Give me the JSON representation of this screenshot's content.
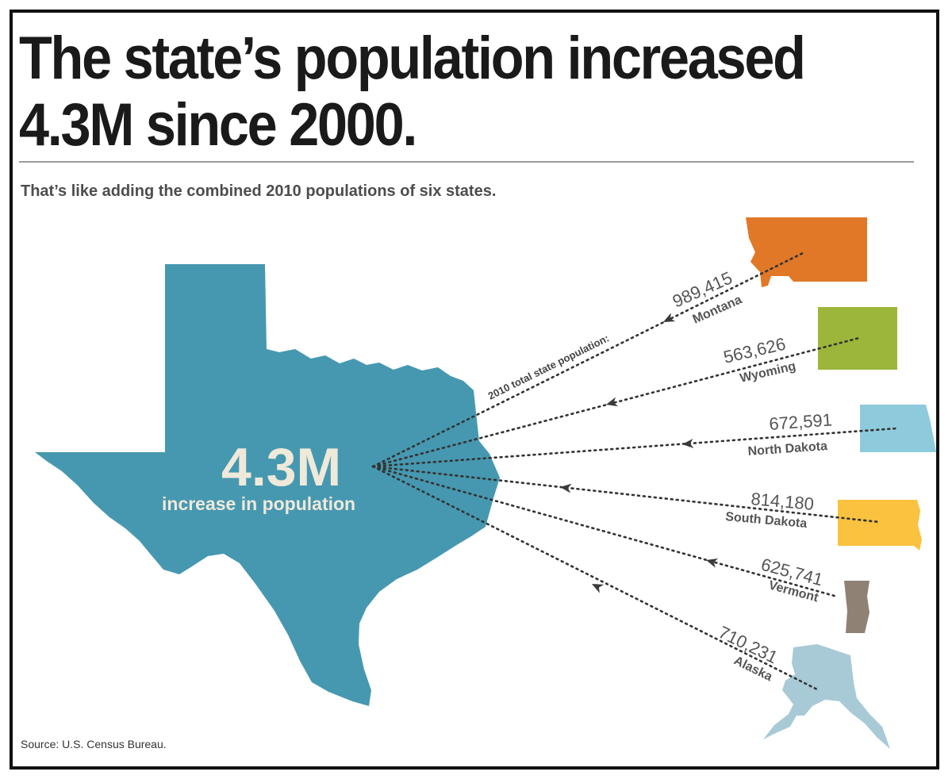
{
  "headline": {
    "line1": "The state’s population increased",
    "line2": "4.3M since 2000."
  },
  "subtitle": "That’s like adding the combined 2010 populations of six states.",
  "source": "Source:  U.S. Census Bureau.",
  "center": {
    "value": "4.3M",
    "label": "increase in population",
    "color": "#4698b0",
    "leader_note": "2010 total state population:"
  },
  "states": [
    {
      "name": "Montana",
      "population": "989,415",
      "color": "#e07828"
    },
    {
      "name": "Wyoming",
      "population": "563,626",
      "color": "#9bb63a"
    },
    {
      "name": "North Dakota",
      "population": "672,591",
      "color": "#8dcbdc"
    },
    {
      "name": "South Dakota",
      "population": "814,180",
      "color": "#fbc23f"
    },
    {
      "name": "Vermont",
      "population": "625,741",
      "color": "#8f8275"
    },
    {
      "name": "Alaska",
      "population": "710,231",
      "color": "#a8cad6"
    }
  ]
}
